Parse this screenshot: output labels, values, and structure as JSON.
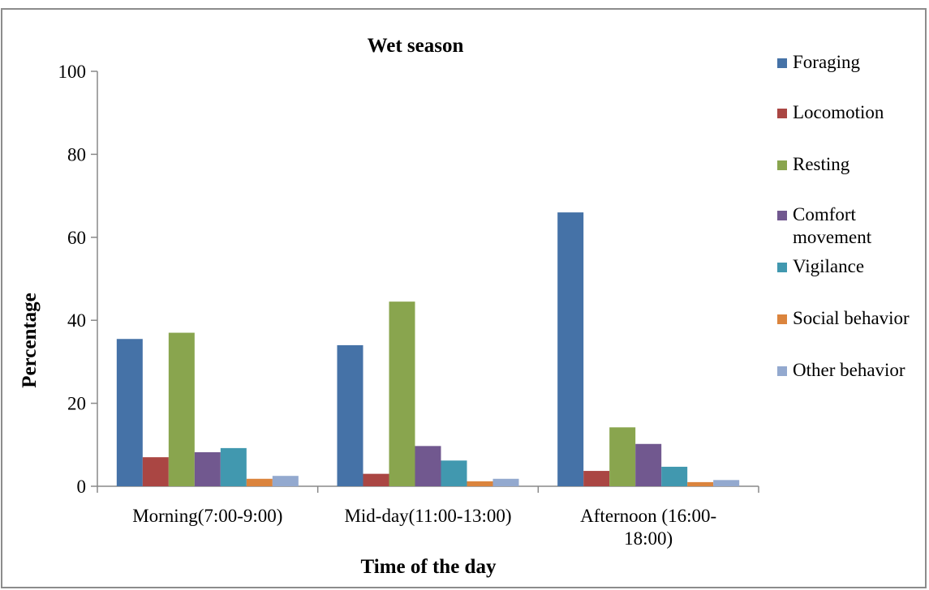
{
  "chart_data": {
    "type": "bar",
    "title": "Wet season",
    "xlabel": "Time of the day",
    "ylabel": "Percentage",
    "ylim": [
      0,
      100
    ],
    "yticks": [
      0,
      20,
      40,
      60,
      80,
      100
    ],
    "categories": [
      [
        "Morning(7:00-9:00)"
      ],
      [
        "Mid-day(11:00-13:00)"
      ],
      [
        "Afternoon (16:00-",
        "18:00)"
      ]
    ],
    "legend_position": "right",
    "grid": false,
    "series": [
      {
        "name": "Foraging",
        "legend_lines": [
          "Foraging"
        ],
        "color": "#4572A7",
        "values": [
          35.5,
          34,
          66
        ]
      },
      {
        "name": "Locomotion",
        "legend_lines": [
          "Locomotion"
        ],
        "color": "#AA4643",
        "values": [
          7,
          3,
          3.7
        ]
      },
      {
        "name": "Resting",
        "legend_lines": [
          "Resting"
        ],
        "color": "#89A54E",
        "values": [
          37,
          44.5,
          14.2
        ]
      },
      {
        "name": "Comfort movement",
        "legend_lines": [
          "Comfort",
          "movement"
        ],
        "color": "#71588F",
        "values": [
          8.2,
          9.7,
          10.2
        ]
      },
      {
        "name": "Vigilance",
        "legend_lines": [
          "Vigilance"
        ],
        "color": "#4198AF",
        "values": [
          9.2,
          6.2,
          4.7
        ]
      },
      {
        "name": "Social behavior",
        "legend_lines": [
          "Social behavior"
        ],
        "color": "#DB843D",
        "values": [
          1.8,
          1.2,
          1
        ]
      },
      {
        "name": "Other behavior",
        "legend_lines": [
          "Other behavior"
        ],
        "color": "#93A9CF",
        "values": [
          2.5,
          1.8,
          1.5
        ]
      }
    ]
  }
}
